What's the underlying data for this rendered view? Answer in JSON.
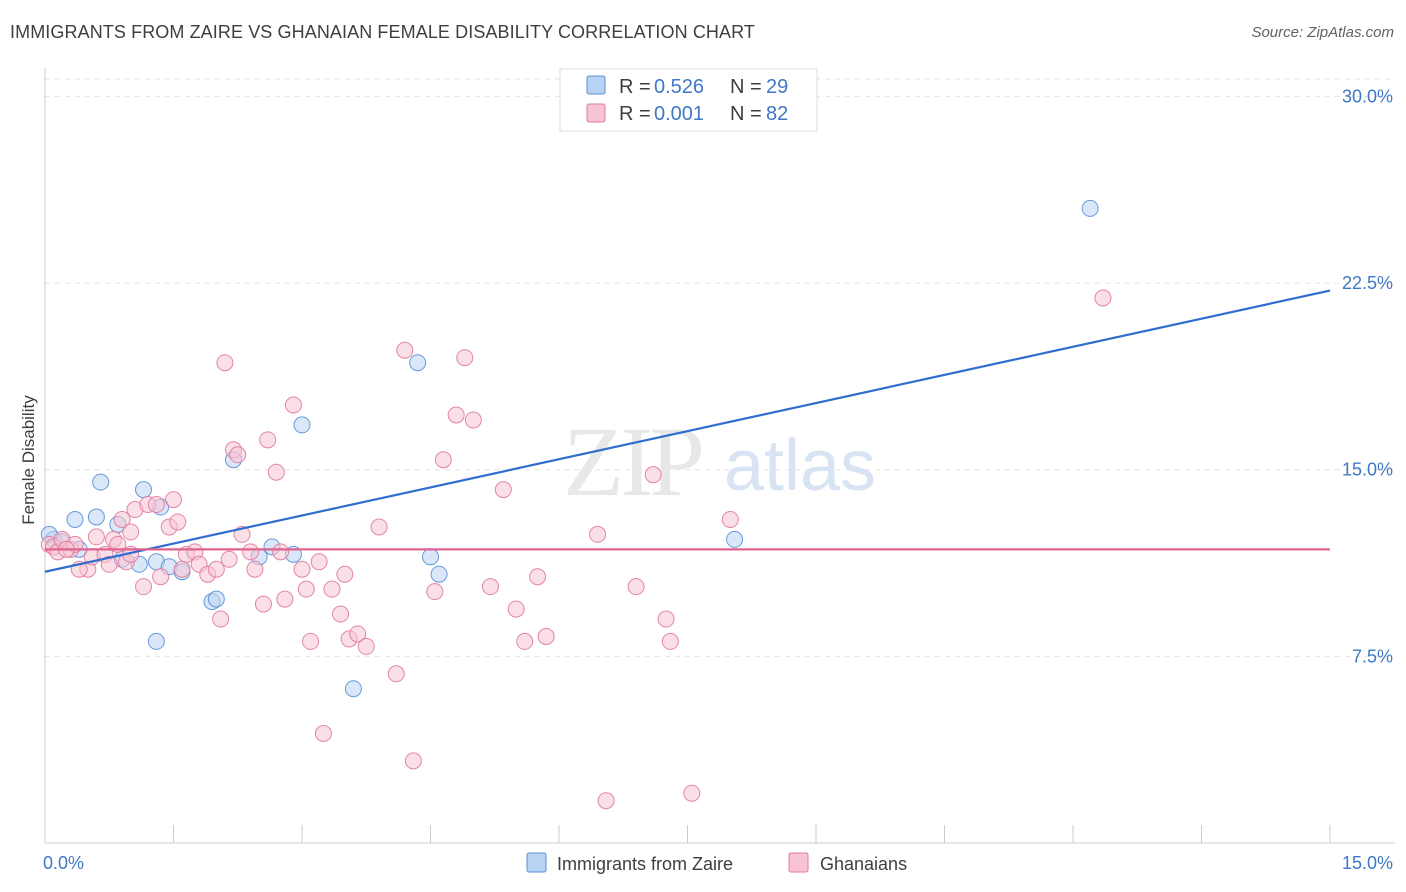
{
  "header": {
    "title": "IMMIGRANTS FROM ZAIRE VS GHANAIAN FEMALE DISABILITY CORRELATION CHART",
    "source": "Source: ZipAtlas.com"
  },
  "watermark": {
    "zip": "ZIP",
    "atlas": "atlas"
  },
  "legend": {
    "r_label": "R =",
    "n_label": "N =",
    "series": [
      {
        "name": "Immigrants from Zaire",
        "r": "0.526",
        "n": "29",
        "color": "#5a8fd8",
        "fill": "#b9d3f3"
      },
      {
        "name": "Ghanaians",
        "r": "0.001",
        "n": "82",
        "color": "#e07a9c",
        "fill": "#f8c4d4"
      }
    ]
  },
  "chart_data": {
    "type": "scatter",
    "title": "IMMIGRANTS FROM ZAIRE VS GHANAIAN FEMALE DISABILITY CORRELATION CHART",
    "xlabel": "",
    "ylabel": "Female Disability",
    "xlim": [
      0,
      15
    ],
    "ylim": [
      0,
      30.7
    ],
    "x_tick_labels": [
      "0.0%",
      "15.0%"
    ],
    "y_ticks": [
      7.5,
      15.0,
      22.5,
      30.0
    ],
    "y_tick_labels": [
      "7.5%",
      "15.0%",
      "22.5%",
      "30.0%"
    ],
    "grid": "horizontal dashed",
    "legend_position": "top-center",
    "series": [
      {
        "name": "Immigrants from Zaire",
        "color": "#5a8fd8",
        "points": [
          [
            0.1,
            12.2
          ],
          [
            0.2,
            12.1
          ],
          [
            0.35,
            13.0
          ],
          [
            0.4,
            11.8
          ],
          [
            0.6,
            13.1
          ],
          [
            0.65,
            14.5
          ],
          [
            0.85,
            12.8
          ],
          [
            0.9,
            11.4
          ],
          [
            1.1,
            11.2
          ],
          [
            1.15,
            14.2
          ],
          [
            1.3,
            11.3
          ],
          [
            1.3,
            8.1
          ],
          [
            1.45,
            11.1
          ],
          [
            1.6,
            10.9
          ],
          [
            1.95,
            9.7
          ],
          [
            2.0,
            9.8
          ],
          [
            2.2,
            15.4
          ],
          [
            2.5,
            11.5
          ],
          [
            2.65,
            11.9
          ],
          [
            2.9,
            11.6
          ],
          [
            3.0,
            16.8
          ],
          [
            3.6,
            6.2
          ],
          [
            4.35,
            19.3
          ],
          [
            4.5,
            11.5
          ],
          [
            4.6,
            10.8
          ],
          [
            8.05,
            12.2
          ],
          [
            12.2,
            25.5
          ],
          [
            0.05,
            12.4
          ],
          [
            1.35,
            13.5
          ]
        ],
        "trend": {
          "x0": 0,
          "y0": 10.9,
          "x1": 15,
          "y1": 22.2
        }
      },
      {
        "name": "Ghanaians",
        "color": "#e07a9c",
        "points": [
          [
            0.05,
            12.0
          ],
          [
            0.1,
            11.9
          ],
          [
            0.15,
            11.7
          ],
          [
            0.2,
            12.2
          ],
          [
            0.3,
            11.8
          ],
          [
            0.35,
            12.0
          ],
          [
            0.5,
            11.0
          ],
          [
            0.55,
            11.5
          ],
          [
            0.6,
            12.3
          ],
          [
            0.7,
            11.6
          ],
          [
            0.8,
            12.2
          ],
          [
            0.85,
            12.0
          ],
          [
            0.9,
            13.0
          ],
          [
            0.95,
            11.3
          ],
          [
            1.0,
            11.6
          ],
          [
            1.05,
            13.4
          ],
          [
            1.15,
            10.3
          ],
          [
            1.2,
            13.6
          ],
          [
            1.3,
            13.6
          ],
          [
            1.35,
            10.7
          ],
          [
            1.45,
            12.7
          ],
          [
            1.5,
            13.8
          ],
          [
            1.55,
            12.9
          ],
          [
            1.6,
            11.0
          ],
          [
            1.65,
            11.6
          ],
          [
            1.75,
            11.7
          ],
          [
            1.8,
            11.2
          ],
          [
            1.9,
            10.8
          ],
          [
            2.0,
            11.0
          ],
          [
            2.05,
            9.0
          ],
          [
            2.1,
            19.3
          ],
          [
            2.2,
            15.8
          ],
          [
            2.25,
            15.6
          ],
          [
            2.3,
            12.4
          ],
          [
            2.4,
            11.7
          ],
          [
            2.45,
            11.0
          ],
          [
            2.55,
            9.6
          ],
          [
            2.6,
            16.2
          ],
          [
            2.7,
            14.9
          ],
          [
            2.75,
            11.7
          ],
          [
            2.8,
            9.8
          ],
          [
            2.9,
            17.6
          ],
          [
            3.0,
            11.0
          ],
          [
            3.05,
            10.2
          ],
          [
            3.1,
            8.1
          ],
          [
            3.2,
            11.3
          ],
          [
            3.35,
            10.2
          ],
          [
            3.45,
            9.2
          ],
          [
            3.5,
            10.8
          ],
          [
            3.55,
            8.2
          ],
          [
            3.65,
            8.4
          ],
          [
            3.75,
            7.9
          ],
          [
            3.9,
            12.7
          ],
          [
            4.1,
            6.8
          ],
          [
            4.2,
            19.8
          ],
          [
            4.3,
            3.3
          ],
          [
            4.55,
            10.1
          ],
          [
            4.65,
            15.4
          ],
          [
            4.8,
            17.2
          ],
          [
            4.9,
            19.5
          ],
          [
            5.0,
            17.0
          ],
          [
            5.2,
            10.3
          ],
          [
            5.35,
            14.2
          ],
          [
            5.5,
            9.4
          ],
          [
            5.6,
            8.1
          ],
          [
            5.75,
            10.7
          ],
          [
            5.85,
            8.3
          ],
          [
            6.45,
            12.4
          ],
          [
            6.55,
            1.7
          ],
          [
            6.9,
            10.3
          ],
          [
            7.1,
            14.8
          ],
          [
            7.25,
            9.0
          ],
          [
            7.3,
            8.1
          ],
          [
            7.55,
            2.0
          ],
          [
            8.0,
            13.0
          ],
          [
            12.35,
            21.9
          ],
          [
            3.25,
            4.4
          ],
          [
            0.4,
            11.0
          ],
          [
            0.25,
            11.8
          ],
          [
            1.0,
            12.5
          ],
          [
            2.15,
            11.4
          ],
          [
            0.75,
            11.2
          ]
        ],
        "trend": {
          "x0": 0,
          "y0": 11.8,
          "x1": 15,
          "y1": 11.8
        }
      }
    ]
  }
}
